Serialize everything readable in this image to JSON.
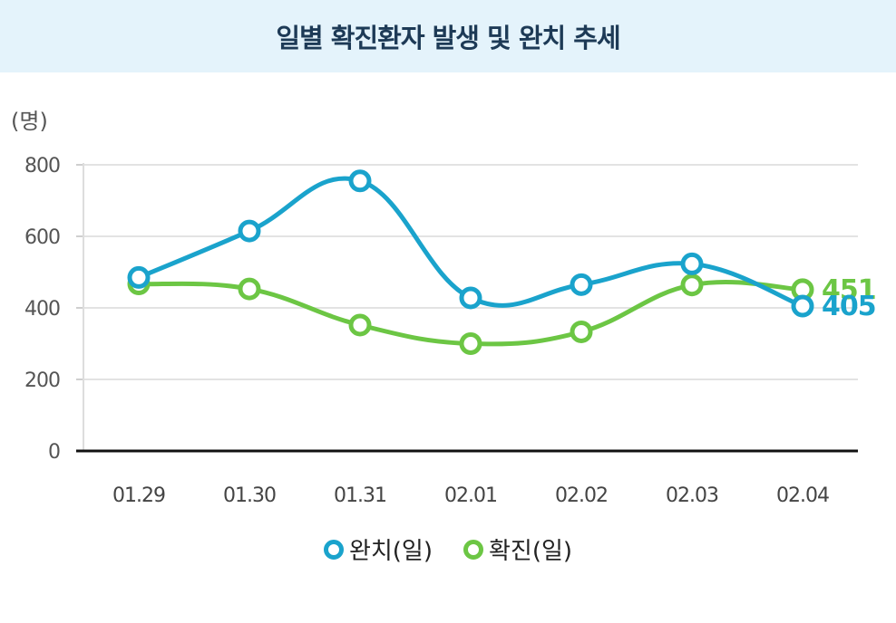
{
  "title": "일별 확진환자 발생 및 완치 추세",
  "chart_data": {
    "type": "line",
    "unit_label": "(명)",
    "categories": [
      "01.29",
      "01.30",
      "01.31",
      "02.01",
      "02.02",
      "02.03",
      "02.04"
    ],
    "ylim": [
      0,
      800
    ],
    "yticks": [
      "0",
      "200",
      "400",
      "600",
      "800"
    ],
    "grid": true,
    "legend_position": "bottom",
    "series": [
      {
        "name": "완치(일)",
        "color": "#1aa3cc",
        "values": [
          485,
          615,
          755,
          428,
          465,
          523,
          405
        ]
      },
      {
        "name": "확진(일)",
        "color": "#6cc644",
        "values": [
          467,
          453,
          352,
          300,
          333,
          464,
          451
        ]
      }
    ],
    "end_labels": [
      {
        "text": "451",
        "color": "#6cc644"
      },
      {
        "text": "405",
        "color": "#1aa3cc"
      }
    ]
  }
}
